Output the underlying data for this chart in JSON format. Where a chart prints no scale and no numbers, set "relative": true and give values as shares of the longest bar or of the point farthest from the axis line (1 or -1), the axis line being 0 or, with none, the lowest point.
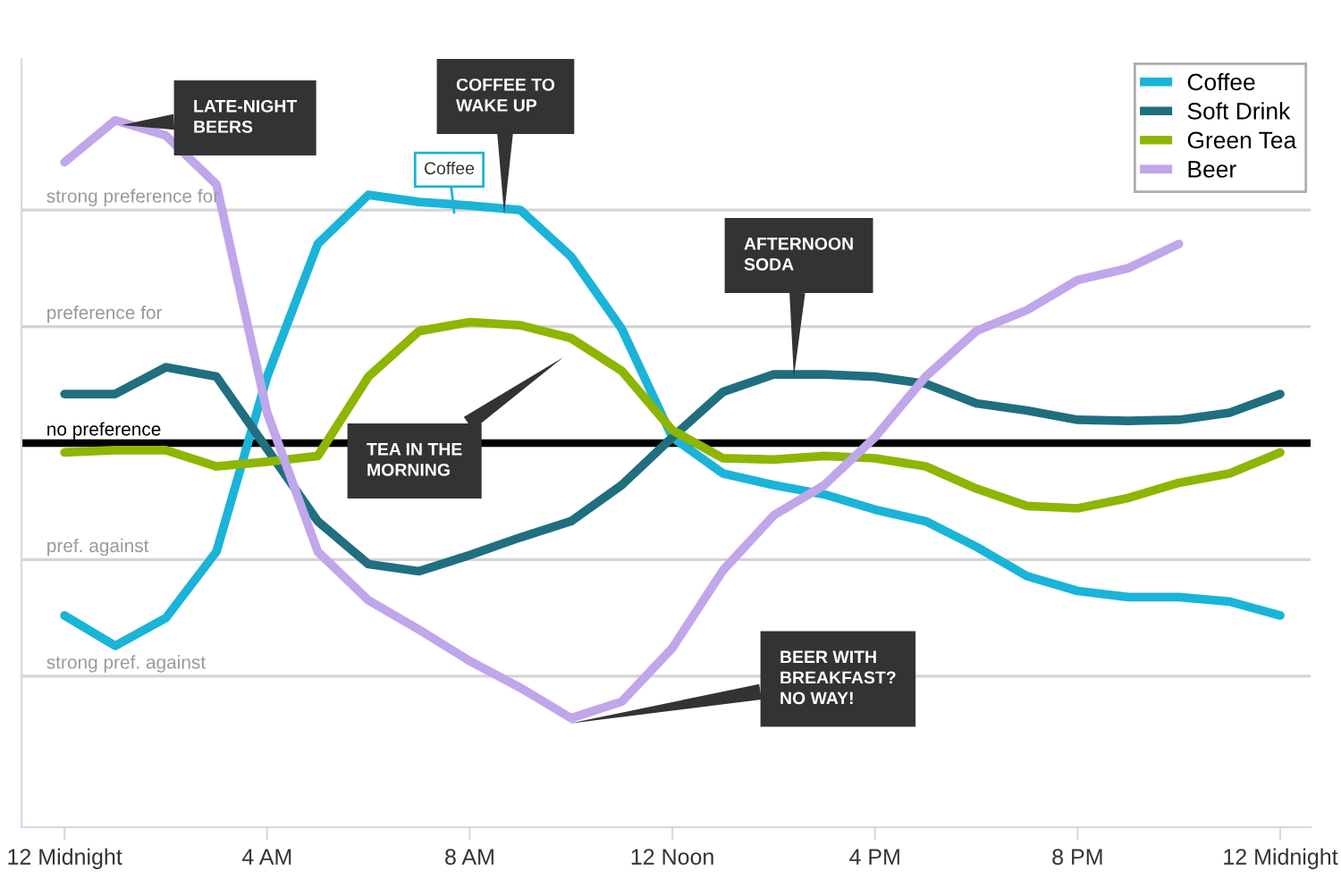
{
  "chart_data": {
    "type": "line",
    "categories": [
      "12 Midnight",
      null,
      null,
      null,
      "4 AM",
      null,
      null,
      null,
      "8 AM",
      null,
      null,
      null,
      "12 Noon",
      null,
      null,
      null,
      "4 PM",
      null,
      null,
      null,
      "8 PM",
      null,
      null,
      null,
      "12 Midnight"
    ],
    "relative": true,
    "series": [
      {
        "name": "Coffee",
        "color": "#1ab4d8",
        "values": [
          -0.534,
          -0.628,
          -0.542,
          -0.336,
          0.206,
          0.617,
          0.769,
          0.747,
          0.736,
          0.722,
          0.578,
          0.354,
          0.018,
          -0.094,
          -0.13,
          -0.159,
          -0.206,
          -0.242,
          -0.321,
          -0.412,
          -0.458,
          -0.477,
          -0.477,
          -0.491,
          -0.534
        ]
      },
      {
        "name": "Soft Drink",
        "color": "#1f6f80",
        "values": [
          0.152,
          0.152,
          0.235,
          0.206,
          -0.018,
          -0.242,
          -0.375,
          -0.397,
          -0.347,
          -0.292,
          -0.242,
          -0.13,
          0.018,
          0.159,
          0.213,
          0.213,
          0.206,
          0.184,
          0.123,
          0.101,
          0.072,
          0.069,
          0.072,
          0.094,
          0.152
        ]
      },
      {
        "name": "Green Tea",
        "color": "#8db600",
        "values": [
          -0.029,
          -0.022,
          -0.022,
          -0.072,
          -0.058,
          -0.04,
          0.206,
          0.347,
          0.375,
          0.365,
          0.325,
          0.224,
          0.04,
          -0.047,
          -0.051,
          -0.04,
          -0.047,
          -0.072,
          -0.141,
          -0.195,
          -0.202,
          -0.17,
          -0.123,
          -0.094,
          -0.029
        ]
      },
      {
        "name": "Beer",
        "color": "#c0a6ea",
        "values": [
          0.87,
          1,
          0.953,
          0.801,
          0.094,
          -0.336,
          -0.487,
          -0.578,
          -0.675,
          -0.758,
          -0.852,
          -0.801,
          -0.635,
          -0.394,
          -0.224,
          -0.13,
          0.018,
          0.206,
          0.347,
          0.412,
          0.505,
          0.542,
          0.617,
          null,
          null
        ]
      }
    ],
    "ref_lines": [
      {
        "axis": "y",
        "value": 0.722,
        "label": "strong preference for",
        "color": "#d4d4d4"
      },
      {
        "axis": "y",
        "value": 0.361,
        "label": "preference for",
        "color": "#d4d4d4"
      },
      {
        "axis": "y",
        "value": 0,
        "label": "no preference",
        "color": "#000000"
      },
      {
        "axis": "y",
        "value": -0.361,
        "label": "pref. against",
        "color": "#d4d4d4"
      },
      {
        "axis": "y",
        "value": -0.722,
        "label": "strong pref. against",
        "color": "#d4d4d4"
      }
    ],
    "legend": "top right",
    "line_style": "solid",
    "annotations": [
      "LATE-NIGHT\nBEERS",
      "COFFEE TO\nWAKE UP",
      "Coffee",
      "TEA IN THE\nMORNING",
      "AFTERNOON\nSODA",
      "BEER WITH\nBREAKFAST?\nNO WAY!"
    ]
  }
}
